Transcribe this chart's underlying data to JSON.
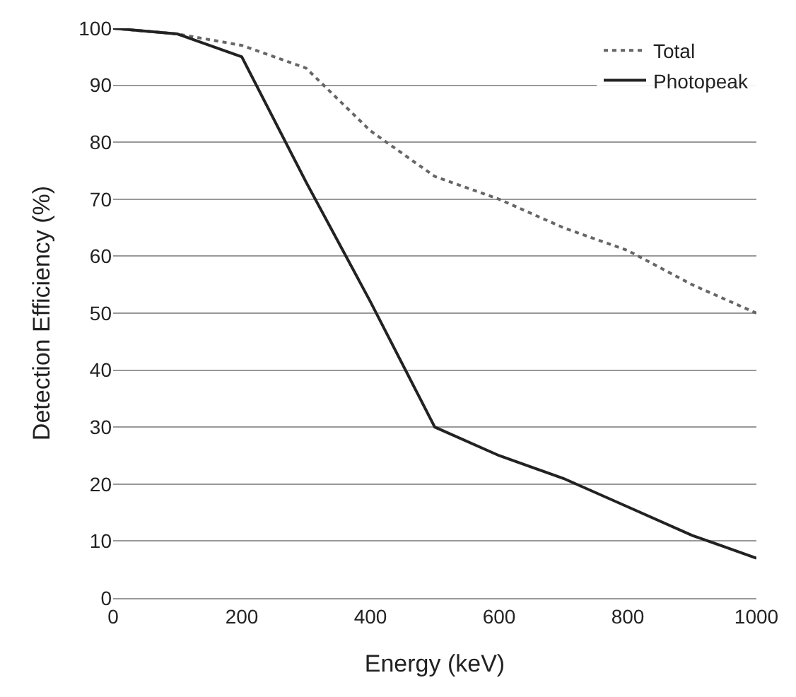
{
  "chart_data": {
    "type": "line",
    "xlabel": "Energy (keV)",
    "ylabel": "Detection Efficiency (%)",
    "xlim": [
      0,
      1000
    ],
    "xticks": [
      0,
      200,
      400,
      600,
      800,
      1000
    ],
    "ylim": [
      0,
      100
    ],
    "yticks": [
      0,
      10,
      20,
      30,
      40,
      50,
      60,
      70,
      80,
      90,
      100
    ],
    "grid": "y",
    "legend": "top right",
    "marker": "none",
    "series": [
      {
        "name": "Total",
        "color": "#666666",
        "line_style": "dotted",
        "x": [
          0,
          100,
          200,
          300,
          400,
          500,
          600,
          700,
          800,
          900,
          1000
        ],
        "values": [
          100,
          99,
          97,
          93,
          82,
          74,
          70,
          65,
          61,
          55,
          50
        ]
      },
      {
        "name": "Photopeak",
        "color": "#222222",
        "line_style": "solid",
        "x": [
          0,
          100,
          200,
          300,
          400,
          500,
          600,
          700,
          800,
          900,
          1000
        ],
        "values": [
          100,
          99,
          95,
          73,
          52,
          30,
          25,
          21,
          16,
          11,
          7
        ]
      }
    ]
  }
}
